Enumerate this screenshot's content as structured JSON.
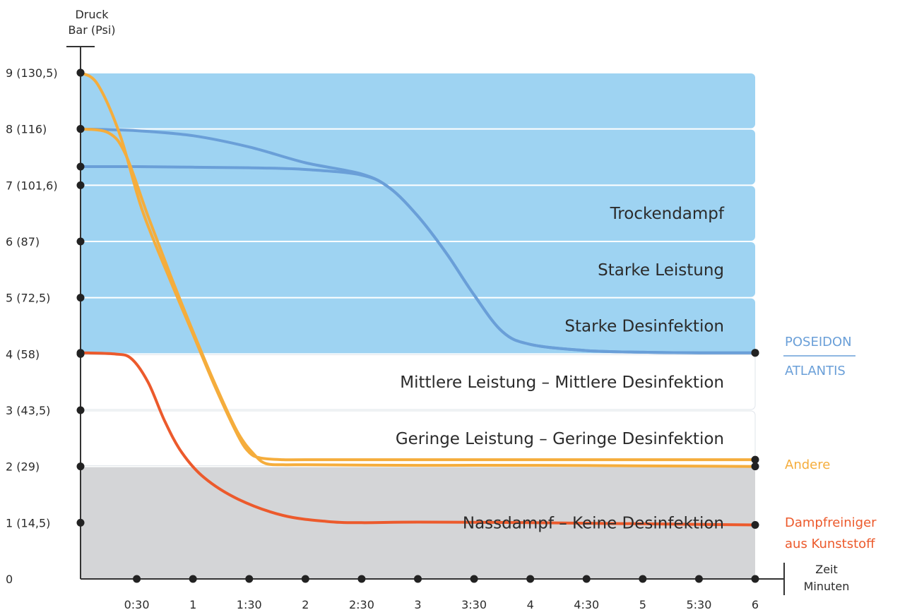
{
  "chart_data": {
    "type": "line",
    "y_axis_title": [
      "Druck",
      "Bar (Psi)"
    ],
    "x_axis_title": [
      "Zeit",
      "Minuten"
    ],
    "xlim": [
      0,
      6
    ],
    "ylim": [
      0,
      9
    ],
    "y_ticks": [
      {
        "value": 9,
        "label": "9 (130,5)"
      },
      {
        "value": 8,
        "label": "8 (116)"
      },
      {
        "value": 7,
        "label": "7 (101,6)"
      },
      {
        "value": 6,
        "label": "6 (87)"
      },
      {
        "value": 5,
        "label": "5 (72,5)"
      },
      {
        "value": 4,
        "label": "4 (58)"
      },
      {
        "value": 3,
        "label": "3 (43,5)"
      },
      {
        "value": 2,
        "label": "2 (29)"
      },
      {
        "value": 1,
        "label": "1 (14,5)"
      },
      {
        "value": 0,
        "label": "0"
      }
    ],
    "x_ticks": [
      {
        "value": 0.5,
        "label": "0:30"
      },
      {
        "value": 1,
        "label": "1"
      },
      {
        "value": 1.5,
        "label": "1:30"
      },
      {
        "value": 2,
        "label": "2"
      },
      {
        "value": 2.5,
        "label": "2:30"
      },
      {
        "value": 3,
        "label": "3"
      },
      {
        "value": 3.5,
        "label": "3:30"
      },
      {
        "value": 4,
        "label": "4"
      },
      {
        "value": 4.5,
        "label": "4:30"
      },
      {
        "value": 5,
        "label": "5"
      },
      {
        "value": 5.5,
        "label": "5:30"
      },
      {
        "value": 6,
        "label": "6"
      }
    ],
    "zones": [
      {
        "from": 8,
        "to": 9,
        "label": "",
        "color": "#9ed3f2"
      },
      {
        "from": 7,
        "to": 8,
        "label": "",
        "color": "#9ed3f2"
      },
      {
        "from": 6,
        "to": 7,
        "label": "Trockendampf",
        "color": "#9ed3f2"
      },
      {
        "from": 5,
        "to": 6,
        "label": "Starke Leistung",
        "color": "#9ed3f2"
      },
      {
        "from": 4,
        "to": 5,
        "label": "Starke Desinfektion",
        "color": "#9ed3f2"
      },
      {
        "from": 3,
        "to": 4,
        "label": "Mittlere Leistung – Mittlere Desinfektion",
        "color": "#ffffff"
      },
      {
        "from": 2,
        "to": 3,
        "label": "Geringe Leistung – Geringe Desinfektion",
        "color": "#ffffff"
      },
      {
        "from": 0,
        "to": 2,
        "label": "Nassdampf – Keine Desinfektion",
        "color": "#d4d5d7"
      }
    ],
    "series": [
      {
        "name": "POSEIDON",
        "color": "#6a9fd8",
        "points": [
          [
            0,
            8.0
          ],
          [
            0.5,
            7.97
          ],
          [
            1,
            7.88
          ],
          [
            1.5,
            7.68
          ],
          [
            2,
            7.4
          ],
          [
            2.5,
            7.2
          ],
          [
            2.75,
            6.95
          ],
          [
            3,
            6.45
          ],
          [
            3.25,
            5.8
          ],
          [
            3.5,
            5.05
          ],
          [
            3.75,
            4.4
          ],
          [
            4,
            4.17
          ],
          [
            4.5,
            4.06
          ],
          [
            5,
            4.03
          ],
          [
            5.5,
            4.02
          ],
          [
            6,
            4.02
          ]
        ]
      },
      {
        "name": "ATLANTIS",
        "color": "#6a9fd8",
        "points": [
          [
            0,
            7.33
          ],
          [
            0.5,
            7.33
          ],
          [
            1,
            7.32
          ],
          [
            1.5,
            7.31
          ],
          [
            2,
            7.28
          ],
          [
            2.5,
            7.18
          ],
          [
            2.75,
            6.95
          ],
          [
            3,
            6.45
          ],
          [
            3.25,
            5.8
          ],
          [
            3.5,
            5.05
          ],
          [
            3.75,
            4.4
          ],
          [
            4,
            4.17
          ],
          [
            4.5,
            4.06
          ],
          [
            5,
            4.03
          ],
          [
            5.5,
            4.02
          ],
          [
            6,
            4.02
          ]
        ]
      },
      {
        "name": "Andere",
        "color": "#f5ad3c",
        "points": [
          [
            0,
            9.0
          ],
          [
            0.15,
            8.8
          ],
          [
            0.35,
            7.9
          ],
          [
            0.55,
            6.55
          ],
          [
            0.8,
            5.3
          ],
          [
            1,
            4.35
          ],
          [
            1.2,
            3.4
          ],
          [
            1.4,
            2.55
          ],
          [
            1.5,
            2.25
          ],
          [
            1.6,
            2.15
          ],
          [
            1.8,
            2.12
          ],
          [
            2,
            2.12
          ],
          [
            3,
            2.12
          ],
          [
            4,
            2.12
          ],
          [
            5,
            2.12
          ],
          [
            6,
            2.12
          ]
        ]
      },
      {
        "name": "Andere",
        "color": "#f5ad3c",
        "points": [
          [
            0,
            8.0
          ],
          [
            0.25,
            7.93
          ],
          [
            0.4,
            7.55
          ],
          [
            0.6,
            6.45
          ],
          [
            0.8,
            5.4
          ],
          [
            1,
            4.4
          ],
          [
            1.2,
            3.45
          ],
          [
            1.4,
            2.6
          ],
          [
            1.55,
            2.2
          ],
          [
            1.65,
            2.05
          ],
          [
            1.8,
            2.03
          ],
          [
            2,
            2.03
          ],
          [
            3,
            2.02
          ],
          [
            4,
            2.02
          ],
          [
            5,
            2.01
          ],
          [
            6,
            2.0
          ]
        ]
      },
      {
        "name": "Dampfreiniger aus Kunststoff",
        "color": "#ec5a2c",
        "points": [
          [
            0,
            4.02
          ],
          [
            0.3,
            4.0
          ],
          [
            0.45,
            3.92
          ],
          [
            0.6,
            3.5
          ],
          [
            0.75,
            2.8
          ],
          [
            0.9,
            2.25
          ],
          [
            1.1,
            1.8
          ],
          [
            1.4,
            1.42
          ],
          [
            1.8,
            1.13
          ],
          [
            2.2,
            1.02
          ],
          [
            2.5,
            1.0
          ],
          [
            3,
            1.01
          ],
          [
            4,
            1.0
          ],
          [
            5,
            0.98
          ],
          [
            6,
            0.96
          ]
        ]
      }
    ],
    "legend": [
      {
        "label": "POSEIDON",
        "color": "#6a9fd8"
      },
      {
        "label": "ATLANTIS",
        "color": "#6a9fd8"
      },
      {
        "label": "Andere",
        "color": "#f5ad3c"
      },
      {
        "label": "Dampfreiniger",
        "color": "#ec5a2c"
      },
      {
        "label": "aus Kunststoff",
        "color": "#ec5a2c"
      }
    ]
  }
}
